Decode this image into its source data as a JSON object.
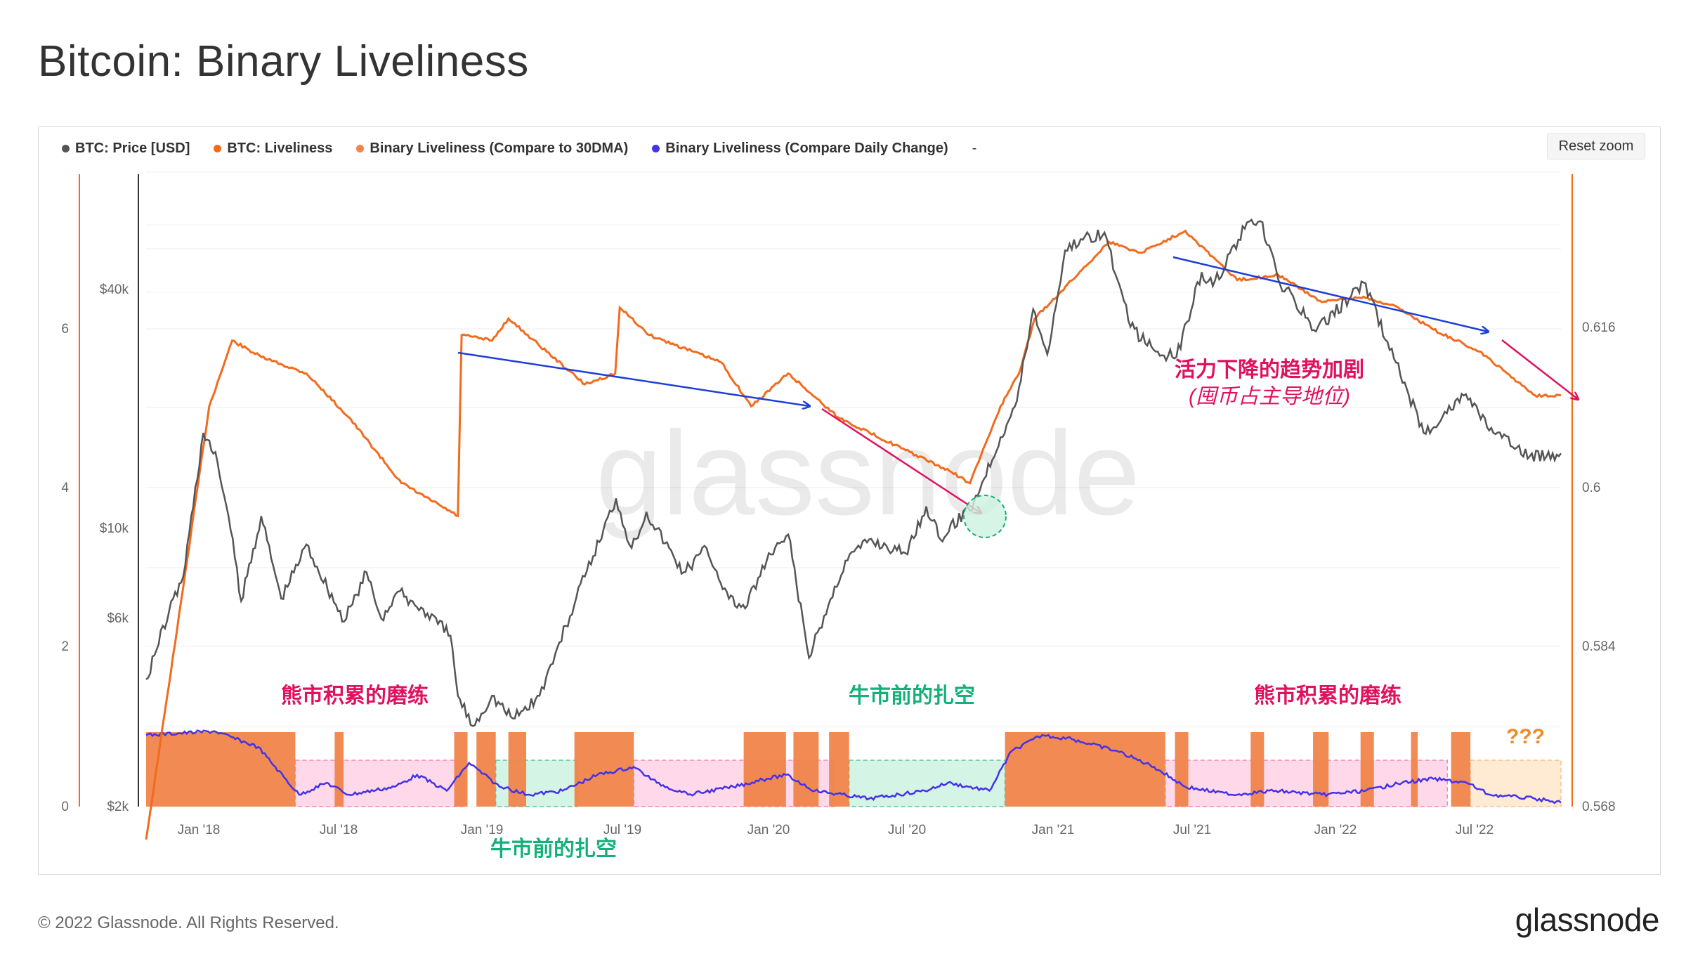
{
  "title": "Bitcoin: Binary Liveliness",
  "reset_zoom": "Reset zoom",
  "footer": {
    "copyright": "© 2022 Glassnode. All Rights Reserved.",
    "logo": "glassnode"
  },
  "watermark": "glassnode",
  "legend": [
    {
      "label": "BTC: Price [USD]",
      "color": "#555555"
    },
    {
      "label": "BTC: Liveliness",
      "color": "#f26b1d"
    },
    {
      "label": "Binary Liveliness (Compare to 30DMA)",
      "color": "#f0844a"
    },
    {
      "label": "Binary Liveliness (Compare Daily Change)",
      "color": "#4433e6"
    },
    {
      "label": "-",
      "color": ""
    }
  ],
  "chart_data": {
    "type": "line",
    "x_ticks": [
      "Jan '18",
      "Jul '18",
      "Jan '19",
      "Jul '19",
      "Jan '20",
      "Jul '20",
      "Jan '21",
      "Jul '21",
      "Jan '22",
      "Jul '22"
    ],
    "y_left_outer_ticks": [
      "0",
      "2",
      "4",
      "6"
    ],
    "y_left_price_ticks": [
      "$2k",
      "$6k",
      "$10k",
      "$40k"
    ],
    "y_right_ticks": [
      "0.568",
      "0.584",
      "0.6",
      "0.616"
    ],
    "price_scale": "log",
    "series": [
      {
        "name": "BTC: Price [USD]",
        "color": "#555555",
        "points": [
          [
            "2017-10-01",
            4300
          ],
          [
            "2017-11-01",
            6500
          ],
          [
            "2017-11-20",
            8000
          ],
          [
            "2017-12-17",
            19000
          ],
          [
            "2018-01-05",
            16000
          ],
          [
            "2018-01-20",
            11500
          ],
          [
            "2018-02-06",
            6900
          ],
          [
            "2018-03-05",
            11500
          ],
          [
            "2018-04-01",
            7000
          ],
          [
            "2018-05-05",
            9700
          ],
          [
            "2018-06-25",
            6100
          ],
          [
            "2018-07-25",
            8200
          ],
          [
            "2018-08-14",
            6200
          ],
          [
            "2018-09-05",
            7300
          ],
          [
            "2018-10-15",
            6400
          ],
          [
            "2018-11-15",
            5600
          ],
          [
            "2018-11-25",
            3900
          ],
          [
            "2018-12-15",
            3250
          ],
          [
            "2019-01-10",
            3900
          ],
          [
            "2019-02-07",
            3400
          ],
          [
            "2019-03-15",
            3900
          ],
          [
            "2019-04-05",
            5000
          ],
          [
            "2019-05-15",
            8000
          ],
          [
            "2019-06-26",
            12800
          ],
          [
            "2019-07-17",
            9500
          ],
          [
            "2019-08-06",
            11800
          ],
          [
            "2019-09-25",
            8200
          ],
          [
            "2019-10-26",
            9500
          ],
          [
            "2019-11-25",
            7000
          ],
          [
            "2019-12-17",
            6600
          ],
          [
            "2020-01-15",
            8800
          ],
          [
            "2020-02-13",
            10300
          ],
          [
            "2020-03-12",
            4900
          ],
          [
            "2020-04-30",
            8800
          ],
          [
            "2020-06-01",
            10000
          ],
          [
            "2020-07-20",
            9200
          ],
          [
            "2020-08-17",
            12200
          ],
          [
            "2020-09-05",
            10000
          ],
          [
            "2020-10-20",
            12500
          ],
          [
            "2020-11-25",
            18500
          ],
          [
            "2020-12-17",
            23000
          ],
          [
            "2021-01-08",
            40000
          ],
          [
            "2021-01-27",
            30500
          ],
          [
            "2021-02-20",
            57000
          ],
          [
            "2021-03-13",
            61000
          ],
          [
            "2021-04-14",
            63500
          ],
          [
            "2021-05-19",
            36000
          ],
          [
            "2021-06-22",
            31000
          ],
          [
            "2021-07-20",
            30000
          ],
          [
            "2021-08-23",
            50000
          ],
          [
            "2021-09-07",
            46000
          ],
          [
            "2021-10-20",
            65000
          ],
          [
            "2021-11-10",
            68000
          ],
          [
            "2021-12-04",
            48000
          ],
          [
            "2022-01-24",
            35000
          ],
          [
            "2022-03-29",
            47000
          ],
          [
            "2022-05-12",
            29000
          ],
          [
            "2022-06-18",
            19000
          ],
          [
            "2022-08-14",
            24000
          ],
          [
            "2022-09-20",
            19000
          ],
          [
            "2022-11-08",
            16500
          ],
          [
            "2022-12-20",
            16800
          ]
        ]
      },
      {
        "name": "BTC: Liveliness",
        "color": "#f26b1d",
        "points": [
          [
            "2017-10-01",
            0.565
          ],
          [
            "2017-11-20",
            0.588
          ],
          [
            "2017-12-25",
            0.6045
          ],
          [
            "2018-01-25",
            0.6105
          ],
          [
            "2018-03-05",
            0.609
          ],
          [
            "2018-05-05",
            0.6075
          ],
          [
            "2018-07-01",
            0.6035
          ],
          [
            "2018-09-10",
            0.5975
          ],
          [
            "2018-11-25",
            0.5945
          ],
          [
            "2018-11-30",
            0.611
          ],
          [
            "2019-01-10",
            0.6105
          ],
          [
            "2019-02-01",
            0.6125
          ],
          [
            "2019-05-15",
            0.6065
          ],
          [
            "2019-06-25",
            0.6075
          ],
          [
            "2019-07-01",
            0.6135
          ],
          [
            "2019-08-10",
            0.611
          ],
          [
            "2019-11-15",
            0.6085
          ],
          [
            "2019-12-25",
            0.6045
          ],
          [
            "2020-02-13",
            0.6075
          ],
          [
            "2020-04-20",
            0.6035
          ],
          [
            "2020-07-20",
            0.6005
          ],
          [
            "2020-09-20",
            0.5985
          ],
          [
            "2020-10-15",
            0.5975
          ],
          [
            "2020-11-25",
            0.6045
          ],
          [
            "2020-12-20",
            0.6075
          ],
          [
            "2021-01-10",
            0.6125
          ],
          [
            "2021-02-15",
            0.615
          ],
          [
            "2021-04-20",
            0.6195
          ],
          [
            "2021-06-01",
            0.6185
          ],
          [
            "2021-08-01",
            0.6205
          ],
          [
            "2021-10-10",
            0.616
          ],
          [
            "2021-12-04",
            0.6165
          ],
          [
            "2022-02-01",
            0.614
          ],
          [
            "2022-03-29",
            0.6145
          ],
          [
            "2022-05-15",
            0.6135
          ],
          [
            "2022-07-01",
            0.6115
          ],
          [
            "2022-09-01",
            0.6095
          ],
          [
            "2022-11-15",
            0.6055
          ],
          [
            "2022-12-20",
            0.6055
          ]
        ]
      },
      {
        "name": "Binary Liveliness (Compare to 30DMA)",
        "color": "#f0844a",
        "scale": "left_outer_0_6",
        "active_windows": [
          [
            "2017-10-01",
            "2018-04-20"
          ],
          [
            "2018-06-12",
            "2018-06-24"
          ],
          [
            "2018-11-20",
            "2018-12-08"
          ],
          [
            "2018-12-20",
            "2019-01-15"
          ],
          [
            "2019-02-01",
            "2019-02-25"
          ],
          [
            "2019-05-01",
            "2019-07-20"
          ],
          [
            "2019-12-15",
            "2020-02-10"
          ],
          [
            "2020-02-20",
            "2020-03-25"
          ],
          [
            "2020-04-08",
            "2020-05-05"
          ],
          [
            "2020-12-01",
            "2021-07-05"
          ],
          [
            "2021-07-18",
            "2021-08-05"
          ],
          [
            "2021-10-28",
            "2021-11-15"
          ],
          [
            "2022-01-20",
            "2022-02-10"
          ],
          [
            "2022-03-25",
            "2022-04-12"
          ],
          [
            "2022-06-01",
            "2022-06-10"
          ],
          [
            "2022-07-25",
            "2022-08-20"
          ]
        ]
      },
      {
        "name": "Binary Liveliness (Compare Daily Change)",
        "color": "#4433e6",
        "scale": "left_outer_0_6",
        "points": [
          [
            "2017-10-01",
            0.9
          ],
          [
            "2018-01-01",
            0.95
          ],
          [
            "2018-03-01",
            0.75
          ],
          [
            "2018-04-25",
            0.15
          ],
          [
            "2018-06-01",
            0.3
          ],
          [
            "2018-07-01",
            0.15
          ],
          [
            "2018-09-01",
            0.25
          ],
          [
            "2018-10-01",
            0.4
          ],
          [
            "2018-11-10",
            0.2
          ],
          [
            "2018-12-10",
            0.55
          ],
          [
            "2019-01-20",
            0.25
          ],
          [
            "2019-03-01",
            0.15
          ],
          [
            "2019-04-15",
            0.2
          ],
          [
            "2019-06-01",
            0.4
          ],
          [
            "2019-07-20",
            0.5
          ],
          [
            "2019-08-20",
            0.3
          ],
          [
            "2019-10-01",
            0.15
          ],
          [
            "2019-12-01",
            0.25
          ],
          [
            "2020-01-15",
            0.35
          ],
          [
            "2020-02-10",
            0.4
          ],
          [
            "2020-03-20",
            0.2
          ],
          [
            "2020-06-01",
            0.1
          ],
          [
            "2020-08-15",
            0.2
          ],
          [
            "2020-09-15",
            0.3
          ],
          [
            "2020-11-10",
            0.2
          ],
          [
            "2020-12-10",
            0.7
          ],
          [
            "2021-01-20",
            0.9
          ],
          [
            "2021-03-01",
            0.85
          ],
          [
            "2021-05-01",
            0.7
          ],
          [
            "2021-06-20",
            0.5
          ],
          [
            "2021-08-01",
            0.25
          ],
          [
            "2021-10-01",
            0.15
          ],
          [
            "2021-12-01",
            0.2
          ],
          [
            "2022-02-01",
            0.15
          ],
          [
            "2022-04-01",
            0.2
          ],
          [
            "2022-05-20",
            0.3
          ],
          [
            "2022-07-01",
            0.35
          ],
          [
            "2022-08-15",
            0.3
          ],
          [
            "2022-09-15",
            0.15
          ],
          [
            "2022-11-15",
            0.1
          ],
          [
            "2022-12-20",
            0.05
          ]
        ]
      }
    ],
    "regimes": [
      {
        "label": "熊市积累的磨练",
        "color": "#ffd1e6",
        "x_range": [
          "2018-04-20",
          "2018-12-05"
        ]
      },
      {
        "label": "牛市前的扎空",
        "color": "#cdf2e0",
        "x_range": [
          "2019-01-15",
          "2019-05-05"
        ]
      },
      {
        "label": "",
        "color": "#ffd1e6",
        "x_range": [
          "2019-07-20",
          "2020-04-15"
        ]
      },
      {
        "label": "牛市前的扎空",
        "color": "#cdf2e0",
        "x_range": [
          "2020-05-05",
          "2020-12-01"
        ]
      },
      {
        "label": "熊市积累的磨练",
        "color": "#ffd1e6",
        "x_range": [
          "2021-07-05",
          "2022-07-20"
        ]
      },
      {
        "label": "???",
        "color": "#ffe6cc",
        "x_range": [
          "2022-08-20",
          "2022-12-20"
        ]
      }
    ],
    "annotations": [
      {
        "text": "活力下降的趋势加剧"
      },
      {
        "text": "(囤币占主导地位)"
      }
    ]
  }
}
